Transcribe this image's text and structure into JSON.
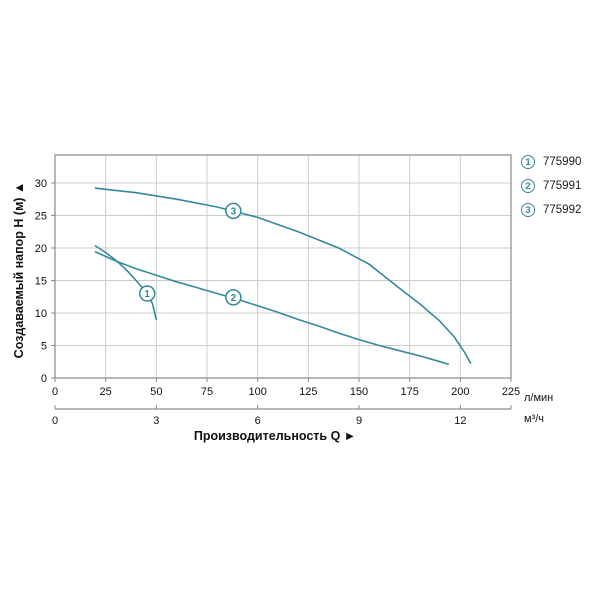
{
  "legend": {
    "items": [
      {
        "marker": "1",
        "label": "775990"
      },
      {
        "marker": "2",
        "label": "775991"
      },
      {
        "marker": "3",
        "label": "775992"
      }
    ]
  },
  "chart_data": {
    "type": "line",
    "title": "",
    "xlabel": "Производительность Q ►",
    "ylabel": "Создаваемый напор H (м) ▲",
    "grid": true,
    "legend_position": "top-right",
    "x_axis_primary": {
      "unit": "л/мин",
      "range": [
        0,
        225
      ],
      "ticks": [
        0,
        25,
        50,
        75,
        100,
        125,
        150,
        175,
        200,
        225
      ]
    },
    "x_axis_secondary": {
      "unit": "м³/ч",
      "ticks": [
        0,
        3,
        6,
        9,
        12
      ],
      "lmin_per_unit": 16.6667
    },
    "y_axis": {
      "range": [
        0,
        34.3
      ],
      "ticks": [
        0,
        5,
        10,
        15,
        20,
        25,
        30
      ]
    },
    "series": [
      {
        "name": "775990",
        "marker": "1",
        "marker_at": [
          45.5,
          13.0
        ],
        "points": [
          [
            20,
            20.3
          ],
          [
            25,
            19.3
          ],
          [
            30,
            18.1
          ],
          [
            35,
            16.7
          ],
          [
            40,
            15.0
          ],
          [
            45,
            13.2
          ],
          [
            48,
            11.5
          ],
          [
            50,
            9.0
          ]
        ]
      },
      {
        "name": "775991",
        "marker": "2",
        "marker_at": [
          88,
          12.4
        ],
        "points": [
          [
            20,
            19.4
          ],
          [
            30,
            18.0
          ],
          [
            40,
            16.8
          ],
          [
            50,
            15.8
          ],
          [
            60,
            14.8
          ],
          [
            70,
            13.9
          ],
          [
            80,
            13.0
          ],
          [
            90,
            12.1
          ],
          [
            100,
            11.1
          ],
          [
            110,
            10.1
          ],
          [
            120,
            9.0
          ],
          [
            130,
            8.0
          ],
          [
            140,
            6.9
          ],
          [
            150,
            5.9
          ],
          [
            160,
            5.0
          ],
          [
            170,
            4.2
          ],
          [
            180,
            3.4
          ],
          [
            190,
            2.5
          ],
          [
            194,
            2.1
          ]
        ]
      },
      {
        "name": "775992",
        "marker": "3",
        "marker_at": [
          88,
          25.7
        ],
        "points": [
          [
            20,
            29.2
          ],
          [
            40,
            28.5
          ],
          [
            60,
            27.5
          ],
          [
            80,
            26.3
          ],
          [
            100,
            24.7
          ],
          [
            120,
            22.5
          ],
          [
            140,
            20.0
          ],
          [
            155,
            17.5
          ],
          [
            170,
            13.8
          ],
          [
            180,
            11.4
          ],
          [
            190,
            8.7
          ],
          [
            197,
            6.3
          ],
          [
            202,
            4.0
          ],
          [
            205,
            2.3
          ]
        ]
      }
    ],
    "colors": {
      "curve": "#35889d",
      "grid": "#cccccc",
      "frame": "#8a8a8a",
      "text": "#111111"
    }
  }
}
